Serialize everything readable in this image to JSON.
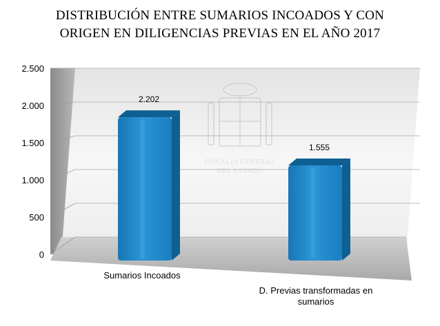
{
  "chart_data": {
    "type": "bar",
    "title_lines": [
      "DISTRIBUCIÓN ENTRE SUMARIOS INCOADOS Y CON",
      "ORIGEN EN DILIGENCIAS PREVIAS EN EL AÑO 2017"
    ],
    "categories": [
      "Sumarios Incoados",
      "D. Previas transformadas en sumarios"
    ],
    "category_label_lines": [
      [
        "Sumarios Incoados"
      ],
      [
        "D. Previas transformadas en",
        "sumarios"
      ]
    ],
    "values": [
      2202,
      1555
    ],
    "data_labels": [
      "2.202",
      "1.555"
    ],
    "y_ticks": [
      0,
      500,
      1000,
      1500,
      2000,
      2500
    ],
    "y_tick_labels": [
      "0",
      "500",
      "1.000",
      "1.500",
      "2.000",
      "2.500"
    ],
    "ylim": [
      0,
      2500
    ],
    "grid": true,
    "bar_color": "#1f87c7",
    "bar_dark": "#0e5f92",
    "bar_light": "#4fb0e6",
    "watermark": {
      "logo": "coat-of-arms-icon",
      "lines": [
        "FISCALÍA GENERAL",
        "DEL ESTADO"
      ]
    }
  }
}
